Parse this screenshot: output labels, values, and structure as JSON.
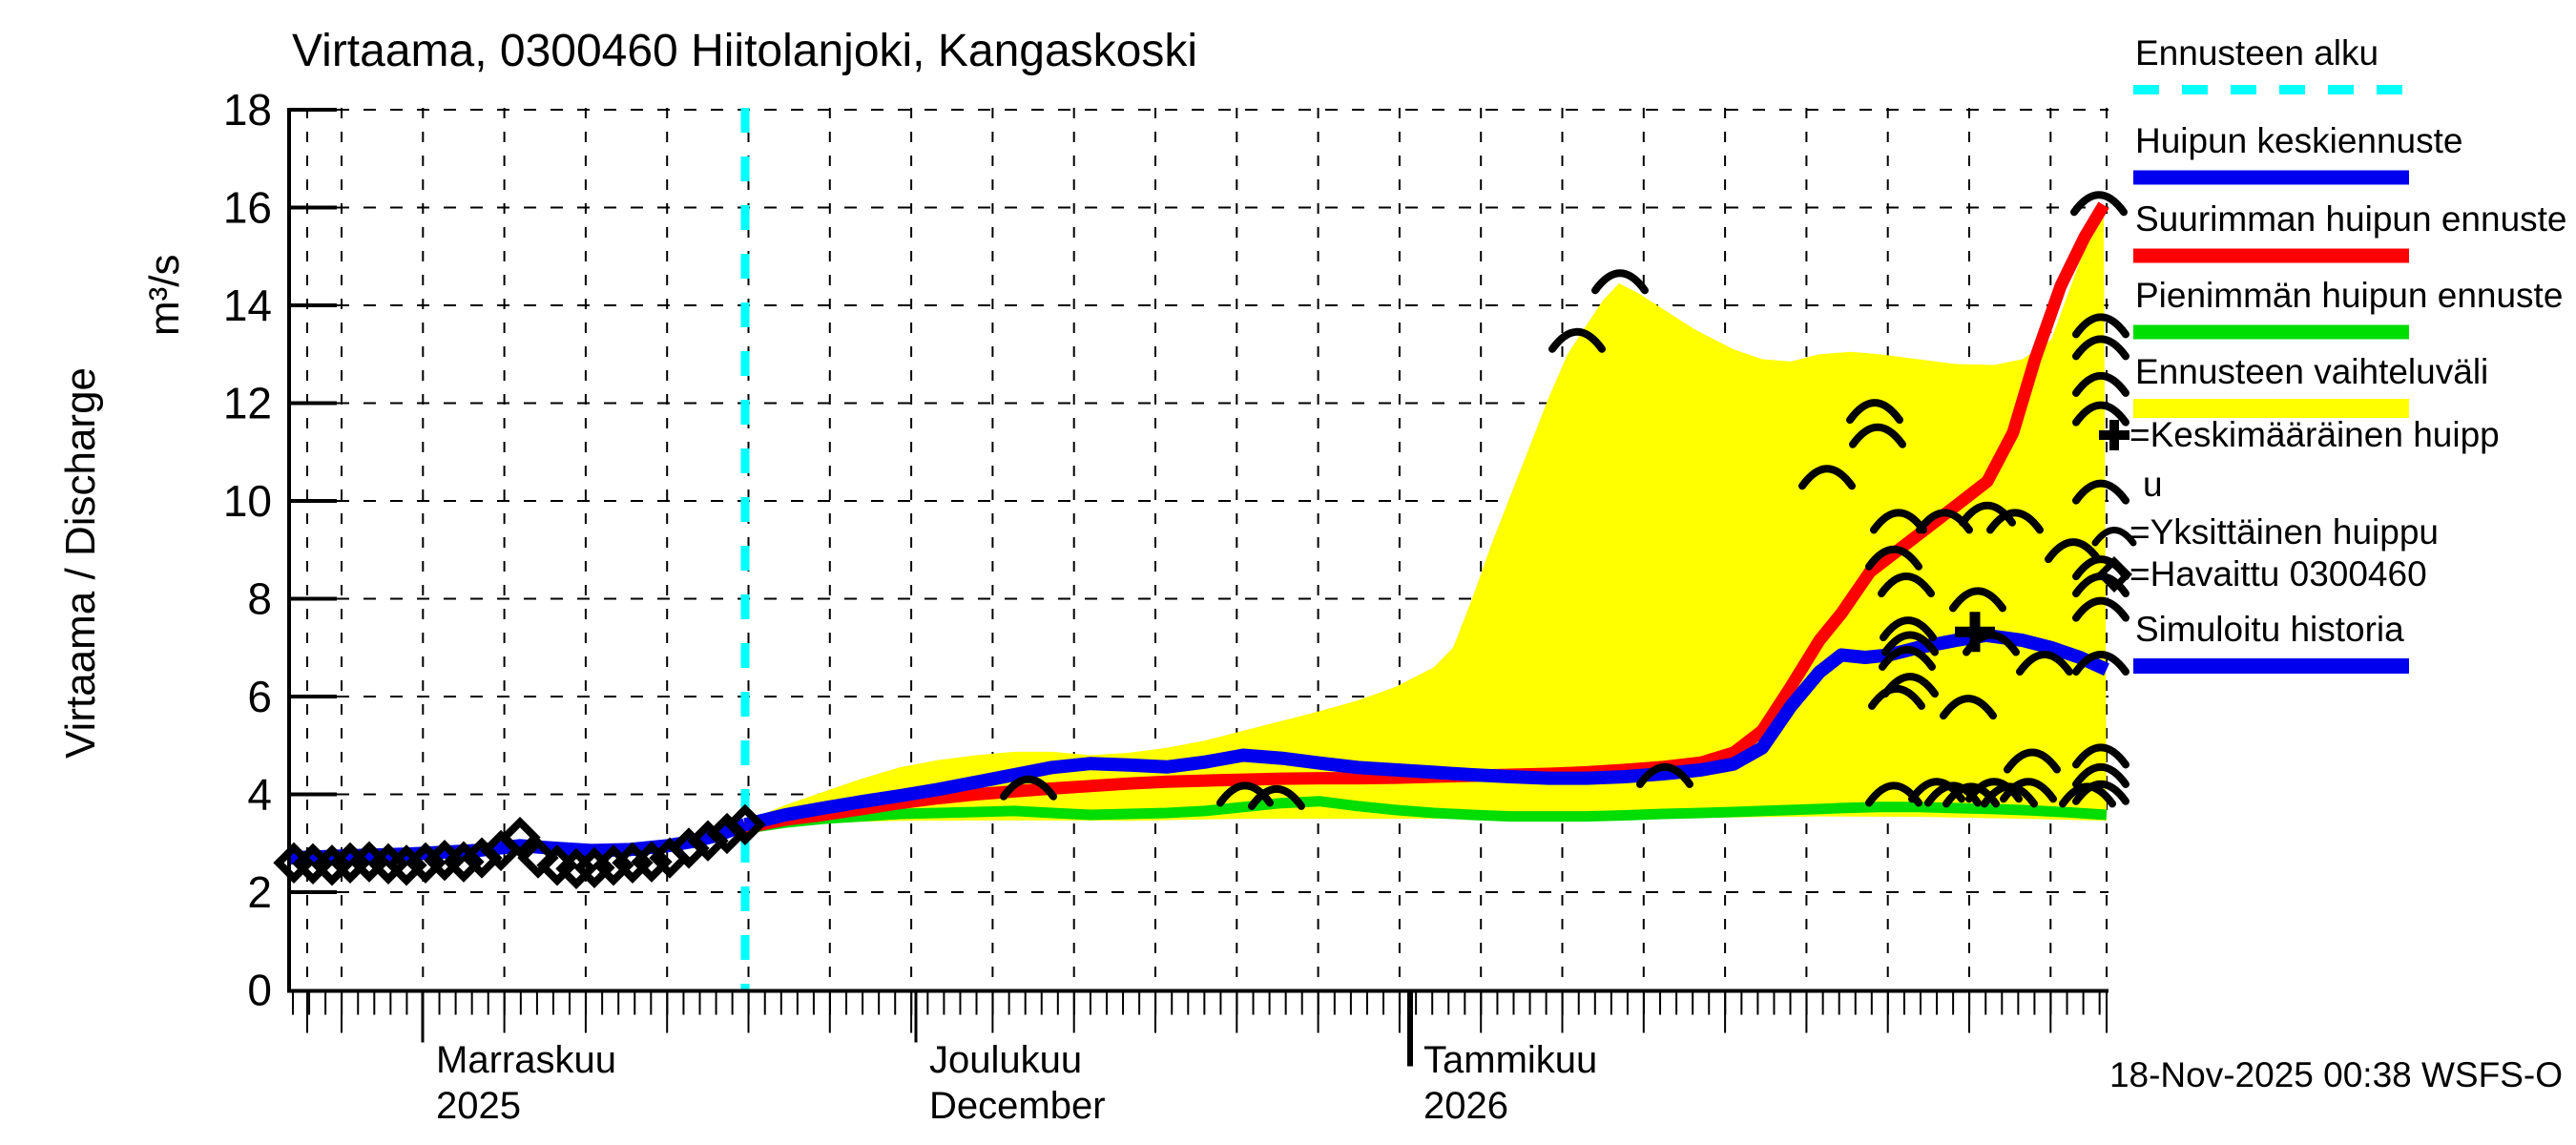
{
  "title": "Virtaama, 0300460 Hiitolanjoki, Kangaskoski",
  "footer": {
    "timestamp": "18-Nov-2025 00:38 WSFS-O"
  },
  "y_axis": {
    "label_main": "Virtaama / Discharge",
    "label_unit": "m³/s",
    "min": 0,
    "max": 18,
    "tick_step": 2
  },
  "x_axis": {
    "months": [
      {
        "label1": "Marraskuu",
        "label2": "2025",
        "x": 443,
        "year_start": false
      },
      {
        "label1": "Joulukuu",
        "label2": "December",
        "x": 960,
        "year_start": false
      },
      {
        "label1": "Tammikuu",
        "label2": "2026",
        "x": 1478,
        "year_start": true
      }
    ]
  },
  "colors": {
    "forecast_start": "#00ffff",
    "mean_peak": "#0000ee",
    "max_peak": "#ff0000",
    "min_peak": "#00dd00",
    "range_band": "#ffff00",
    "observed": "#000000",
    "history": "#0000ee"
  },
  "legend": {
    "items": [
      {
        "label": "Ennusteen alku",
        "swatch": "dashed-line",
        "color": "#00ffff"
      },
      {
        "label": "Huipun keskiennuste",
        "swatch": "line",
        "color": "#0000ee"
      },
      {
        "label": "Suurimman huipun ennuste",
        "swatch": "line",
        "color": "#ff0000"
      },
      {
        "label": "Pienimmän huipun ennuste",
        "swatch": "line",
        "color": "#00dd00"
      },
      {
        "label": "Ennusteen vaihteluväli",
        "swatch": "line",
        "color": "#ffff00"
      },
      {
        "label": "Keskimääräinen huippu",
        "wrap": [
          "=Keskimääräinen huipp",
          "u"
        ],
        "swatch": "marker-plus",
        "color": "#000000"
      },
      {
        "label": "Yksittäinen huippu",
        "wrap": [
          "=Yksittäinen huippu"
        ],
        "swatch": "marker-caret",
        "color": "#000000"
      },
      {
        "label": "Havaittu 0300460",
        "wrap": [
          "=Havaittu 0300460"
        ],
        "swatch": "marker-diamond",
        "color": "#000000"
      },
      {
        "label": "Simuloitu historia",
        "swatch": "line",
        "color": "#0000ee"
      }
    ]
  },
  "chart_data": {
    "type": "line",
    "title": "Virtaama, 0300460 Hiitolanjoki, Kangaskoski",
    "xlabel_months": [
      "Marraskuu 2025",
      "Joulukuu December",
      "Tammikuu 2026"
    ],
    "ylabel": "Virtaama / Discharge m³/s",
    "ylim": [
      0,
      18
    ],
    "grid": true,
    "legend_position": "right",
    "x_unit": "pixel (left axis x=303, ~17 px per day; Nov1=443, Dec1=960, Jan1=1478)",
    "y_unit": "m3/s",
    "forecast_start_x": 781,
    "series": [
      {
        "name": "observed_diamonds",
        "points": [
          [
            308,
            2.6
          ],
          [
            328,
            2.58
          ],
          [
            348,
            2.55
          ],
          [
            367,
            2.6
          ],
          [
            387,
            2.62
          ],
          [
            407,
            2.58
          ],
          [
            426,
            2.55
          ],
          [
            446,
            2.6
          ],
          [
            466,
            2.65
          ],
          [
            486,
            2.62
          ],
          [
            505,
            2.7
          ],
          [
            525,
            2.85
          ],
          [
            545,
            3.12
          ],
          [
            564,
            2.7
          ],
          [
            584,
            2.55
          ],
          [
            604,
            2.48
          ],
          [
            623,
            2.5
          ],
          [
            643,
            2.55
          ],
          [
            663,
            2.6
          ],
          [
            683,
            2.62
          ],
          [
            702,
            2.7
          ],
          [
            722,
            2.9
          ],
          [
            742,
            3.05
          ],
          [
            762,
            3.2
          ],
          [
            781,
            3.38
          ]
        ]
      },
      {
        "name": "simulated_history",
        "points": [
          [
            303,
            2.7
          ],
          [
            360,
            2.74
          ],
          [
            430,
            2.78
          ],
          [
            500,
            2.85
          ],
          [
            545,
            2.95
          ],
          [
            580,
            2.9
          ],
          [
            620,
            2.85
          ],
          [
            660,
            2.87
          ],
          [
            700,
            2.95
          ],
          [
            730,
            3.05
          ],
          [
            755,
            3.18
          ],
          [
            781,
            3.38
          ]
        ]
      },
      {
        "name": "mean_peak_forecast",
        "points": [
          [
            781,
            3.38
          ],
          [
            823,
            3.58
          ],
          [
            863,
            3.72
          ],
          [
            903,
            3.85
          ],
          [
            943,
            3.97
          ],
          [
            983,
            4.1
          ],
          [
            1023,
            4.25
          ],
          [
            1063,
            4.4
          ],
          [
            1103,
            4.55
          ],
          [
            1143,
            4.63
          ],
          [
            1183,
            4.6
          ],
          [
            1223,
            4.56
          ],
          [
            1263,
            4.66
          ],
          [
            1303,
            4.8
          ],
          [
            1343,
            4.74
          ],
          [
            1383,
            4.64
          ],
          [
            1423,
            4.55
          ],
          [
            1463,
            4.5
          ],
          [
            1503,
            4.45
          ],
          [
            1543,
            4.4
          ],
          [
            1583,
            4.36
          ],
          [
            1623,
            4.33
          ],
          [
            1663,
            4.33
          ],
          [
            1703,
            4.36
          ],
          [
            1743,
            4.42
          ],
          [
            1783,
            4.5
          ],
          [
            1817,
            4.62
          ],
          [
            1847,
            4.95
          ],
          [
            1877,
            5.8
          ],
          [
            1907,
            6.5
          ],
          [
            1930,
            6.85
          ],
          [
            1955,
            6.8
          ],
          [
            1980,
            6.85
          ],
          [
            2010,
            7.0
          ],
          [
            2050,
            7.15
          ],
          [
            2082,
            7.25
          ],
          [
            2120,
            7.15
          ],
          [
            2150,
            7.0
          ],
          [
            2180,
            6.8
          ],
          [
            2208,
            6.55
          ]
        ]
      },
      {
        "name": "max_peak_forecast",
        "points": [
          [
            781,
            3.32
          ],
          [
            823,
            3.48
          ],
          [
            863,
            3.58
          ],
          [
            903,
            3.7
          ],
          [
            943,
            3.82
          ],
          [
            983,
            3.92
          ],
          [
            1023,
            4.0
          ],
          [
            1063,
            4.06
          ],
          [
            1103,
            4.12
          ],
          [
            1143,
            4.17
          ],
          [
            1183,
            4.22
          ],
          [
            1223,
            4.26
          ],
          [
            1263,
            4.28
          ],
          [
            1303,
            4.3
          ],
          [
            1343,
            4.32
          ],
          [
            1383,
            4.33
          ],
          [
            1423,
            4.33
          ],
          [
            1463,
            4.34
          ],
          [
            1503,
            4.36
          ],
          [
            1543,
            4.38
          ],
          [
            1583,
            4.4
          ],
          [
            1623,
            4.42
          ],
          [
            1663,
            4.45
          ],
          [
            1703,
            4.5
          ],
          [
            1743,
            4.56
          ],
          [
            1783,
            4.65
          ],
          [
            1817,
            4.85
          ],
          [
            1847,
            5.3
          ],
          [
            1877,
            6.2
          ],
          [
            1907,
            7.15
          ],
          [
            1930,
            7.7
          ],
          [
            1960,
            8.55
          ],
          [
            2010,
            9.3
          ],
          [
            2050,
            9.9
          ],
          [
            2083,
            10.4
          ],
          [
            2110,
            11.4
          ],
          [
            2133,
            12.9
          ],
          [
            2160,
            14.4
          ],
          [
            2185,
            15.4
          ],
          [
            2205,
            16.05
          ]
        ]
      },
      {
        "name": "min_peak_forecast",
        "points": [
          [
            781,
            3.3
          ],
          [
            823,
            3.42
          ],
          [
            863,
            3.5
          ],
          [
            903,
            3.55
          ],
          [
            943,
            3.6
          ],
          [
            983,
            3.62
          ],
          [
            1023,
            3.64
          ],
          [
            1063,
            3.66
          ],
          [
            1103,
            3.62
          ],
          [
            1143,
            3.58
          ],
          [
            1183,
            3.6
          ],
          [
            1223,
            3.62
          ],
          [
            1263,
            3.66
          ],
          [
            1303,
            3.74
          ],
          [
            1343,
            3.82
          ],
          [
            1383,
            3.86
          ],
          [
            1423,
            3.76
          ],
          [
            1463,
            3.68
          ],
          [
            1503,
            3.62
          ],
          [
            1543,
            3.58
          ],
          [
            1583,
            3.55
          ],
          [
            1623,
            3.55
          ],
          [
            1663,
            3.55
          ],
          [
            1703,
            3.57
          ],
          [
            1743,
            3.6
          ],
          [
            1783,
            3.62
          ],
          [
            1817,
            3.64
          ],
          [
            1847,
            3.66
          ],
          [
            1877,
            3.68
          ],
          [
            1907,
            3.7
          ],
          [
            1930,
            3.72
          ],
          [
            1970,
            3.74
          ],
          [
            2010,
            3.74
          ],
          [
            2050,
            3.72
          ],
          [
            2090,
            3.7
          ],
          [
            2130,
            3.67
          ],
          [
            2170,
            3.63
          ],
          [
            2208,
            3.58
          ]
        ]
      }
    ],
    "forecast_range": {
      "name": "ennusteen_vaihteluvali",
      "upper": [
        [
          781,
          3.45
        ],
        [
          823,
          3.78
        ],
        [
          863,
          4.05
        ],
        [
          903,
          4.32
        ],
        [
          943,
          4.55
        ],
        [
          983,
          4.7
        ],
        [
          1023,
          4.8
        ],
        [
          1063,
          4.87
        ],
        [
          1103,
          4.87
        ],
        [
          1143,
          4.8
        ],
        [
          1183,
          4.85
        ],
        [
          1223,
          4.95
        ],
        [
          1263,
          5.1
        ],
        [
          1303,
          5.3
        ],
        [
          1343,
          5.5
        ],
        [
          1383,
          5.7
        ],
        [
          1423,
          5.92
        ],
        [
          1463,
          6.2
        ],
        [
          1503,
          6.6
        ],
        [
          1523,
          7.0
        ],
        [
          1543,
          8.0
        ],
        [
          1563,
          9.1
        ],
        [
          1583,
          10.1
        ],
        [
          1603,
          11.1
        ],
        [
          1623,
          12.1
        ],
        [
          1643,
          13.0
        ],
        [
          1663,
          13.6
        ],
        [
          1680,
          14.1
        ],
        [
          1697,
          14.45
        ],
        [
          1717,
          14.25
        ],
        [
          1737,
          14.0
        ],
        [
          1777,
          13.5
        ],
        [
          1817,
          13.1
        ],
        [
          1847,
          12.9
        ],
        [
          1877,
          12.85
        ],
        [
          1907,
          13.0
        ],
        [
          1940,
          13.05
        ],
        [
          1970,
          13.0
        ],
        [
          2010,
          12.9
        ],
        [
          2050,
          12.8
        ],
        [
          2090,
          12.78
        ],
        [
          2120,
          12.9
        ],
        [
          2150,
          13.3
        ],
        [
          2180,
          14.9
        ],
        [
          2205,
          16.0
        ]
      ],
      "lower": [
        [
          781,
          3.3
        ],
        [
          823,
          3.35
        ],
        [
          863,
          3.4
        ],
        [
          903,
          3.44
        ],
        [
          943,
          3.46
        ],
        [
          1063,
          3.47
        ],
        [
          1183,
          3.46
        ],
        [
          1303,
          3.5
        ],
        [
          1423,
          3.5
        ],
        [
          1543,
          3.5
        ],
        [
          1663,
          3.5
        ],
        [
          1783,
          3.52
        ],
        [
          1907,
          3.55
        ],
        [
          2010,
          3.54
        ],
        [
          2120,
          3.5
        ],
        [
          2208,
          3.46
        ]
      ]
    },
    "average_peak_marker": [
      2070,
      7.32
    ],
    "individual_peak_markers": [
      [
        1078,
        4.25
      ],
      [
        1305,
        4.12
      ],
      [
        1338,
        4.05
      ],
      [
        1653,
        13.4
      ],
      [
        1698,
        14.6
      ],
      [
        1745,
        4.5
      ],
      [
        1915,
        10.6
      ],
      [
        1965,
        11.95
      ],
      [
        1968,
        11.45
      ],
      [
        1990,
        9.7
      ],
      [
        2038,
        9.7
      ],
      [
        2083,
        9.85
      ],
      [
        2112,
        9.7
      ],
      [
        1985,
        8.95
      ],
      [
        1998,
        8.4
      ],
      [
        2073,
        8.1
      ],
      [
        2173,
        9.1
      ],
      [
        2000,
        7.5
      ],
      [
        2002,
        7.2
      ],
      [
        1999,
        6.9
      ],
      [
        2087,
        7.2
      ],
      [
        2143,
        6.8
      ],
      [
        2002,
        6.35
      ],
      [
        1988,
        6.1
      ],
      [
        2063,
        5.9
      ],
      [
        2130,
        4.8
      ],
      [
        1985,
        4.12
      ],
      [
        2030,
        4.2
      ],
      [
        2047,
        4.12
      ],
      [
        2066,
        4.1
      ],
      [
        2090,
        4.2
      ],
      [
        2106,
        4.1
      ],
      [
        2126,
        4.2
      ],
      [
        2188,
        4.1
      ],
      [
        2200,
        16.2
      ],
      [
        2202,
        13.7
      ],
      [
        2202,
        13.25
      ],
      [
        2202,
        12.5
      ],
      [
        2202,
        11.9
      ],
      [
        2202,
        10.3
      ],
      [
        2202,
        8.75
      ],
      [
        2202,
        8.4
      ],
      [
        2202,
        7.9
      ],
      [
        2202,
        6.8
      ],
      [
        2202,
        4.9
      ],
      [
        2202,
        4.5
      ],
      [
        2202,
        4.15
      ]
    ]
  }
}
